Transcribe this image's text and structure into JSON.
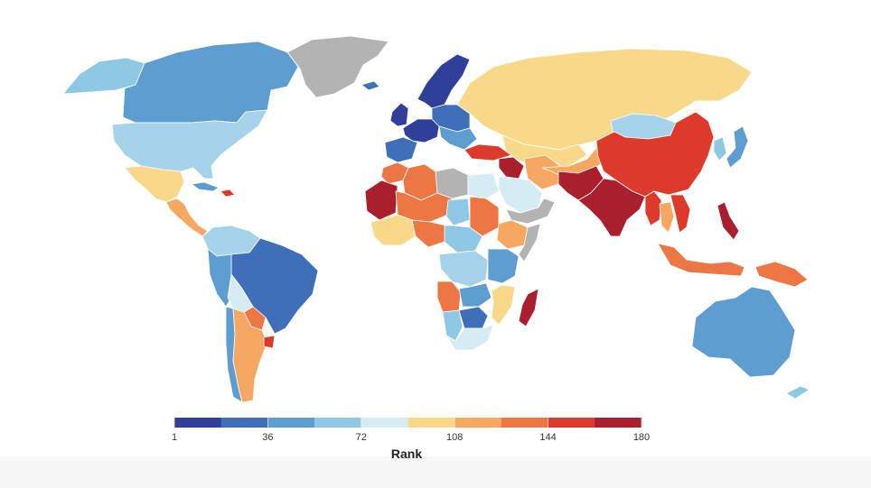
{
  "legend": {
    "title": "Rank",
    "min": 1,
    "max": 180,
    "ticks": [
      {
        "label": "1",
        "value": 1
      },
      {
        "label": "36",
        "value": 36
      },
      {
        "label": "72",
        "value": 72
      },
      {
        "label": "108",
        "value": 108
      },
      {
        "label": "144",
        "value": 144
      },
      {
        "label": "180",
        "value": 180
      }
    ],
    "colors": [
      "#2f3f9a",
      "#3f6fb8",
      "#5d9dcf",
      "#8fc8e4",
      "#d6ecf3",
      "#f8d98a",
      "#f6a862",
      "#ec7745",
      "#dc3b2b",
      "#aa1f2e"
    ]
  },
  "no_data_color": "#b3b3b3",
  "regions": [
    {
      "id": "greenland",
      "color": "#b3b3b3"
    },
    {
      "id": "alaska",
      "color": "#8fc8e4"
    },
    {
      "id": "canada",
      "color": "#5d9dcf"
    },
    {
      "id": "usa",
      "color": "#a7d3ea"
    },
    {
      "id": "mexico",
      "color": "#f8d98a"
    },
    {
      "id": "central-america",
      "color": "#f6a862"
    },
    {
      "id": "cuba",
      "color": "#5d9dcf"
    },
    {
      "id": "caribbean",
      "color": "#dc3b2b"
    },
    {
      "id": "colombia-venezuela",
      "color": "#a7d3ea"
    },
    {
      "id": "brazil",
      "color": "#3f6fb8"
    },
    {
      "id": "peru",
      "color": "#5d9dcf"
    },
    {
      "id": "bolivia",
      "color": "#d6ecf3"
    },
    {
      "id": "paraguay",
      "color": "#ec7745"
    },
    {
      "id": "chile",
      "color": "#5d9dcf"
    },
    {
      "id": "argentina",
      "color": "#f6a862"
    },
    {
      "id": "uruguay",
      "color": "#dc3b2b"
    },
    {
      "id": "scandinavia",
      "color": "#2f3f9a"
    },
    {
      "id": "iceland",
      "color": "#3f6fb8"
    },
    {
      "id": "uk-ireland",
      "color": "#2f3f9a"
    },
    {
      "id": "western-europe",
      "color": "#2f3f9a"
    },
    {
      "id": "central-europe",
      "color": "#3f6fb8"
    },
    {
      "id": "balkans",
      "color": "#5d9dcf"
    },
    {
      "id": "iberia",
      "color": "#3f6fb8"
    },
    {
      "id": "russia",
      "color": "#f8d98a"
    },
    {
      "id": "kazakhstan",
      "color": "#f8d98a"
    },
    {
      "id": "turkey",
      "color": "#dc3b2b"
    },
    {
      "id": "syria-iraq",
      "color": "#aa1f2e"
    },
    {
      "id": "iran",
      "color": "#f6a862"
    },
    {
      "id": "arabia",
      "color": "#d6ecf3"
    },
    {
      "id": "yemen-oman",
      "color": "#b3b3b3"
    },
    {
      "id": "egypt",
      "color": "#d6ecf3"
    },
    {
      "id": "libya",
      "color": "#b3b3b3"
    },
    {
      "id": "algeria",
      "color": "#ec7745"
    },
    {
      "id": "morocco",
      "color": "#ec7745"
    },
    {
      "id": "mauritania",
      "color": "#aa1f2e"
    },
    {
      "id": "mali-niger",
      "color": "#ec7745"
    },
    {
      "id": "chad",
      "color": "#8fc8e4"
    },
    {
      "id": "sudan",
      "color": "#ec7745"
    },
    {
      "id": "ethiopia",
      "color": "#f6a862"
    },
    {
      "id": "somalia",
      "color": "#b3b3b3"
    },
    {
      "id": "west-africa",
      "color": "#f8d98a"
    },
    {
      "id": "nigeria",
      "color": "#ec7745"
    },
    {
      "id": "central-africa",
      "color": "#8fc8e4"
    },
    {
      "id": "drc",
      "color": "#a7d3ea"
    },
    {
      "id": "east-africa",
      "color": "#5d9dcf"
    },
    {
      "id": "angola",
      "color": "#ec7745"
    },
    {
      "id": "zambia",
      "color": "#5d9dcf"
    },
    {
      "id": "mozambique",
      "color": "#f8d98a"
    },
    {
      "id": "namibia",
      "color": "#8fc8e4"
    },
    {
      "id": "botswana",
      "color": "#3f6fb8"
    },
    {
      "id": "south-africa",
      "color": "#d6ecf3"
    },
    {
      "id": "madagascar",
      "color": "#aa1f2e"
    },
    {
      "id": "central-asia",
      "color": "#f6a862"
    },
    {
      "id": "afghanistan-pakistan",
      "color": "#aa1f2e"
    },
    {
      "id": "india",
      "color": "#aa1f2e"
    },
    {
      "id": "mongolia",
      "color": "#a7d3ea"
    },
    {
      "id": "china",
      "color": "#dc3b2b"
    },
    {
      "id": "korea",
      "color": "#8fc8e4"
    },
    {
      "id": "japan",
      "color": "#5d9dcf"
    },
    {
      "id": "myanmar",
      "color": "#dc3b2b"
    },
    {
      "id": "thailand",
      "color": "#f6a862"
    },
    {
      "id": "vietnam",
      "color": "#dc3b2b"
    },
    {
      "id": "philippines",
      "color": "#aa1f2e"
    },
    {
      "id": "indonesia",
      "color": "#ec7745"
    },
    {
      "id": "papua",
      "color": "#ec7745"
    },
    {
      "id": "australia",
      "color": "#5d9dcf"
    },
    {
      "id": "new-zealand",
      "color": "#8fc8e4"
    }
  ]
}
